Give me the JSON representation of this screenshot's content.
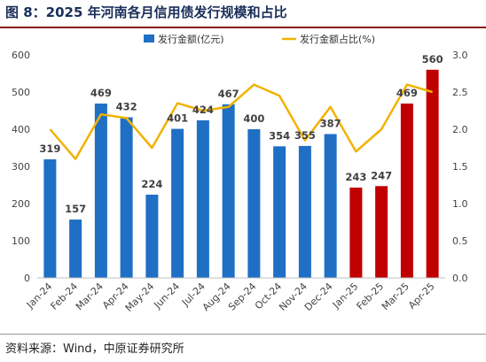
{
  "figure": {
    "title": "图 8：2025 年河南各月信用债发行规模和占比",
    "source": "资料来源：Wind，中原证券研究所"
  },
  "chart_data": {
    "type": "bar",
    "categories": [
      "Jan-24",
      "Feb-24",
      "Mar-24",
      "Apr-24",
      "May-24",
      "Jun-24",
      "Jul-24",
      "Aug-24",
      "Sep-24",
      "Oct-24",
      "Nov-24",
      "Dec-24",
      "Jan-25",
      "Feb-25",
      "Mar-25",
      "Apr-25"
    ],
    "series": [
      {
        "name": "发行金额(亿元)",
        "type": "bar",
        "axis": "left",
        "values": [
          319,
          157,
          469,
          432,
          224,
          401,
          424,
          467,
          400,
          354,
          355,
          387,
          243,
          247,
          469,
          560
        ],
        "color": "#1f6fc5",
        "highlight_color": "#c00000",
        "highlight_from_index": 12
      },
      {
        "name": "发行金额占比(%)",
        "type": "line",
        "axis": "right",
        "values": [
          2.0,
          1.6,
          2.2,
          2.15,
          1.75,
          2.35,
          2.25,
          2.3,
          2.6,
          2.45,
          1.85,
          2.3,
          1.7,
          2.0,
          2.6,
          2.5
        ],
        "color": "#f2b200"
      }
    ],
    "y_left": {
      "min": 0,
      "max": 600,
      "ticks": [
        0,
        100,
        200,
        300,
        400,
        500,
        600
      ]
    },
    "y_right": {
      "min": 0,
      "max": 3.0,
      "ticks": [
        "0.0",
        "0.5",
        "1.0",
        "1.5",
        "2.0",
        "2.5",
        "3.0"
      ]
    },
    "grid": false,
    "legend_position": "top"
  }
}
